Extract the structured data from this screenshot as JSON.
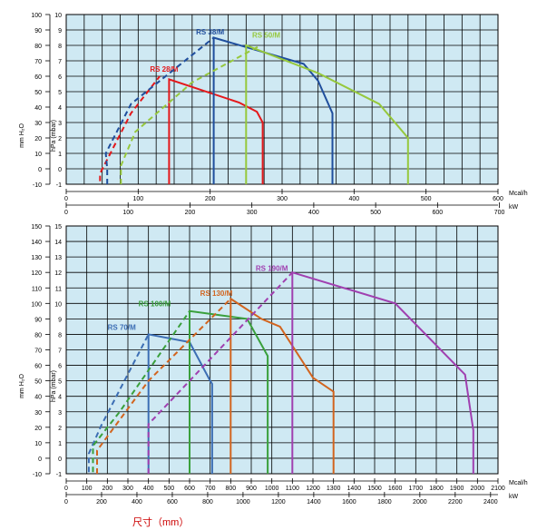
{
  "footer_label": "尺寸（mm）",
  "colors": {
    "plot_bg": "#cfe9f3",
    "grid": "#000000",
    "footer": "#cc0000",
    "RS 28/M": "#e4181b",
    "RS 38/M": "#1f4e9d",
    "RS 50/M": "#96c83c",
    "RS 70/M": "#3c6eb4",
    "RS 100/M": "#3aa03c",
    "RS 130/M": "#d2641e",
    "RS 190/M": "#a040b0"
  },
  "chart_data": [
    {
      "type": "line",
      "ylabel_left": "mm H₂O",
      "ylabel_right": "hPa (mbar)",
      "xlabel_top_unit": "Mcal/h",
      "xlabel_bottom_unit": "kW",
      "xlim": [
        0,
        600
      ],
      "ylim": [
        -10,
        100
      ],
      "grid": true,
      "mm_ticks": [
        "-10",
        "0",
        "10",
        "20",
        "30",
        "40",
        "50",
        "60",
        "70",
        "80",
        "90",
        "100"
      ],
      "hpa_ticks": [
        "-1",
        "0",
        "1",
        "2",
        "3",
        "4",
        "5",
        "6",
        "7",
        "8",
        "9",
        "10"
      ],
      "mcal_ticks": [
        {
          "v": 0,
          "label": "0"
        },
        {
          "v": 100,
          "label": "100"
        },
        {
          "v": 200,
          "label": "200"
        },
        {
          "v": 300,
          "label": "300"
        },
        {
          "v": 400,
          "label": "400"
        },
        {
          "v": 500,
          "label": "500"
        },
        {
          "v": 600,
          "label": "600"
        }
      ],
      "kw_ticks": [
        {
          "v": 0,
          "label": "0"
        },
        {
          "v": 100,
          "label": "100"
        },
        {
          "v": 200,
          "label": "200"
        },
        {
          "v": 300,
          "label": "300"
        },
        {
          "v": 400,
          "label": "400"
        },
        {
          "v": 500,
          "label": "500"
        },
        {
          "v": 600,
          "label": "600"
        },
        {
          "v": 700,
          "label": "700"
        }
      ],
      "series": [
        {
          "name": "RS 28/M",
          "label_at": [
            136,
            63
          ],
          "dashed": [
            [
              47,
              -8
            ],
            [
              47,
              -3
            ],
            [
              90,
              36
            ],
            [
              130,
              60
            ]
          ],
          "solid": [
            [
              143,
              -10
            ],
            [
              143,
              58
            ],
            [
              240,
              43
            ],
            [
              265,
              37
            ],
            [
              273,
              30
            ],
            [
              273,
              -10
            ]
          ]
        },
        {
          "name": "RS 38/M",
          "label_at": [
            200,
            87
          ],
          "dashed": [
            [
              57,
              -10
            ],
            [
              57,
              0
            ],
            [
              55,
              10
            ],
            [
              90,
              42
            ],
            [
              205,
              85
            ]
          ],
          "solid": [
            [
              205,
              -10
            ],
            [
              205,
              85
            ],
            [
              330,
              68
            ],
            [
              350,
              57
            ],
            [
              370,
              36
            ],
            [
              370,
              -10
            ]
          ]
        },
        {
          "name": "RS 50/M",
          "label_at": [
            278,
            85
          ],
          "dashed": [
            [
              76,
              -10
            ],
            [
              76,
              2
            ],
            [
              96,
              24
            ],
            [
              175,
              56
            ],
            [
              270,
              80
            ]
          ],
          "solid": [
            [
              250,
              -10
            ],
            [
              250,
              80
            ],
            [
              350,
              62
            ],
            [
              435,
              42
            ],
            [
              475,
              20
            ],
            [
              475,
              -10
            ]
          ]
        }
      ]
    },
    {
      "type": "line",
      "ylabel_left": "mm H₂O",
      "ylabel_right": "hPa (mbar)",
      "xlabel_top_unit": "Mcal/h",
      "xlabel_bottom_unit": "kW",
      "xlim": [
        0,
        2100
      ],
      "ylim": [
        -1,
        15
      ],
      "grid": true,
      "mm_ticks": [
        "-10",
        "0",
        "10",
        "20",
        "30",
        "40",
        "50",
        "60",
        "70",
        "80",
        "90",
        "100",
        "110",
        "120",
        "130",
        "140",
        "150"
      ],
      "hpa_ticks": [
        "-1",
        "0",
        "1",
        "2",
        "3",
        "4",
        "5",
        "6",
        "7",
        "8",
        "9",
        "10",
        "11",
        "12",
        "13",
        "14",
        "15"
      ],
      "mcal_ticks": [
        {
          "v": 0,
          "label": "0"
        },
        {
          "v": 100,
          "label": "100"
        },
        {
          "v": 200,
          "label": "200"
        },
        {
          "v": 300,
          "label": "300"
        },
        {
          "v": 400,
          "label": "400"
        },
        {
          "v": 500,
          "label": "500"
        },
        {
          "v": 600,
          "label": "600"
        },
        {
          "v": 700,
          "label": "700"
        },
        {
          "v": 800,
          "label": "800"
        },
        {
          "v": 900,
          "label": "900"
        },
        {
          "v": 1000,
          "label": "1000"
        },
        {
          "v": 1100,
          "label": "1100"
        },
        {
          "v": 1200,
          "label": "1200"
        },
        {
          "v": 1300,
          "label": "1300"
        },
        {
          "v": 1400,
          "label": "1400"
        },
        {
          "v": 1500,
          "label": "1500"
        },
        {
          "v": 1600,
          "label": "1600"
        },
        {
          "v": 1700,
          "label": "1700"
        },
        {
          "v": 1800,
          "label": "1800"
        },
        {
          "v": 1900,
          "label": "1900"
        },
        {
          "v": 2000,
          "label": "2000"
        },
        {
          "v": 2100,
          "label": "2100"
        }
      ],
      "kw_ticks": [
        {
          "v": 0,
          "label": "0"
        },
        {
          "v": 200,
          "label": "200"
        },
        {
          "v": 400,
          "label": "400"
        },
        {
          "v": 600,
          "label": "600"
        },
        {
          "v": 800,
          "label": "800"
        },
        {
          "v": 1000,
          "label": "1000"
        },
        {
          "v": 1200,
          "label": "1200"
        },
        {
          "v": 1400,
          "label": "1400"
        },
        {
          "v": 1600,
          "label": "1600"
        },
        {
          "v": 1800,
          "label": "1800"
        },
        {
          "v": 2000,
          "label": "2000"
        },
        {
          "v": 2200,
          "label": "2200"
        },
        {
          "v": 2400,
          "label": "2400"
        }
      ],
      "series": [
        {
          "name": "RS 70/M",
          "label_at": [
            270,
            8.3
          ],
          "dashed": [
            [
              110,
              -0.9
            ],
            [
              110,
              0.3
            ],
            [
              170,
              2.1
            ],
            [
              400,
              8
            ]
          ],
          "solid": [
            [
              400,
              -1
            ],
            [
              400,
              8
            ],
            [
              600,
              7.5
            ],
            [
              700,
              5
            ],
            [
              710,
              4.8
            ],
            [
              710,
              -1
            ]
          ]
        },
        {
          "name": "RS 100/M",
          "label_at": [
            430,
            9.8
          ],
          "dashed": [
            [
              130,
              -0.9
            ],
            [
              130,
              0.8
            ],
            [
              260,
              3
            ],
            [
              600,
              9.5
            ]
          ],
          "solid": [
            [
              600,
              -1
            ],
            [
              600,
              9.5
            ],
            [
              880,
              9
            ],
            [
              980,
              6.6
            ],
            [
              980,
              -1
            ]
          ]
        },
        {
          "name": "RS 130/M",
          "label_at": [
            730,
            10.5
          ],
          "dashed": [
            [
              150,
              -1
            ],
            [
              150,
              0.5
            ],
            [
              400,
              5
            ],
            [
              800,
              10.3
            ]
          ],
          "solid": [
            [
              800,
              -1
            ],
            [
              800,
              10.3
            ],
            [
              950,
              9
            ],
            [
              1040,
              8.5
            ],
            [
              1200,
              5.2
            ],
            [
              1300,
              4.3
            ],
            [
              1300,
              -1
            ]
          ]
        },
        {
          "name": "RS 190/M",
          "label_at": [
            1000,
            12.1
          ],
          "dashed": [
            [
              400,
              -1
            ],
            [
              400,
              2.2
            ],
            [
              1100,
              12
            ]
          ],
          "solid": [
            [
              1100,
              -1
            ],
            [
              1100,
              12
            ],
            [
              1600,
              10
            ],
            [
              1940,
              5.4
            ],
            [
              1980,
              1.8
            ],
            [
              1980,
              -1
            ]
          ]
        }
      ]
    }
  ]
}
